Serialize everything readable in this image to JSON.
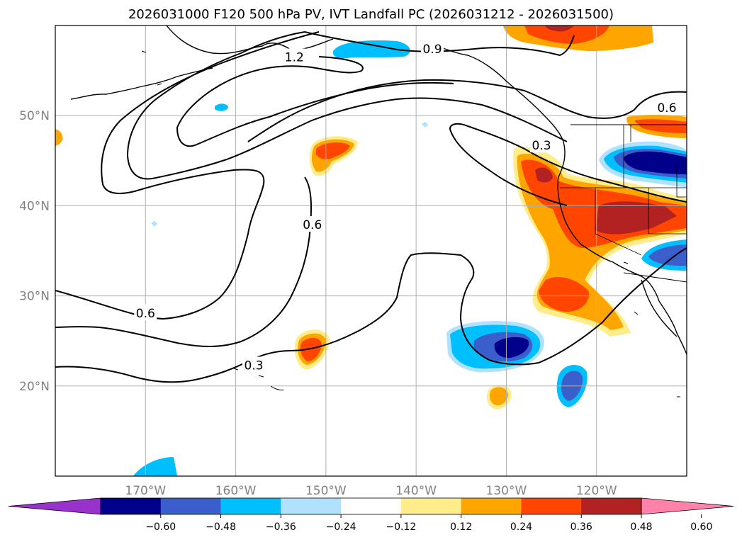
{
  "title": "2026031000 F120 500 hPa PV, IVT Landfall PC (2026031212 - 2026031500)",
  "map": {
    "lon_range": [
      -180,
      -110
    ],
    "lat_range": [
      10,
      60
    ],
    "lon_ticks": [
      -170,
      -160,
      -150,
      -140,
      -130,
      -120
    ],
    "lon_tick_labels": [
      "170°W",
      "160°W",
      "150°W",
      "140°W",
      "130°W",
      "120°W"
    ],
    "lat_ticks": [
      20,
      30,
      40,
      50
    ],
    "lat_tick_labels": [
      "20°N",
      "30°N",
      "40°N",
      "50°N"
    ],
    "grid": true
  },
  "contour_labels": [
    {
      "text": "1.2",
      "lon": -153.5,
      "lat": 56.5
    },
    {
      "text": "0.9",
      "lon": -138.2,
      "lat": 57.4
    },
    {
      "text": "0.6",
      "lon": -112.2,
      "lat": 50.9
    },
    {
      "text": "0.3",
      "lon": -126.1,
      "lat": 46.7
    },
    {
      "text": "0.6",
      "lon": -151.5,
      "lat": 37.9
    },
    {
      "text": "0.6",
      "lon": -170.0,
      "lat": 28.1
    },
    {
      "text": "0.3",
      "lon": -158.0,
      "lat": 22.3
    }
  ],
  "colorbar": {
    "colors": [
      "#9932cc",
      "#00008b",
      "#3a5fcd",
      "#00bfff",
      "#b0e2ff",
      "#ffffff",
      "#ffec8b",
      "#ffa500",
      "#ff4500",
      "#b22222",
      "#ff82ab"
    ],
    "tick_labels": [
      "−0.60",
      "−0.48",
      "−0.36",
      "−0.24",
      "−0.12",
      "0.12",
      "0.24",
      "0.36",
      "0.48",
      "0.60"
    ]
  }
}
